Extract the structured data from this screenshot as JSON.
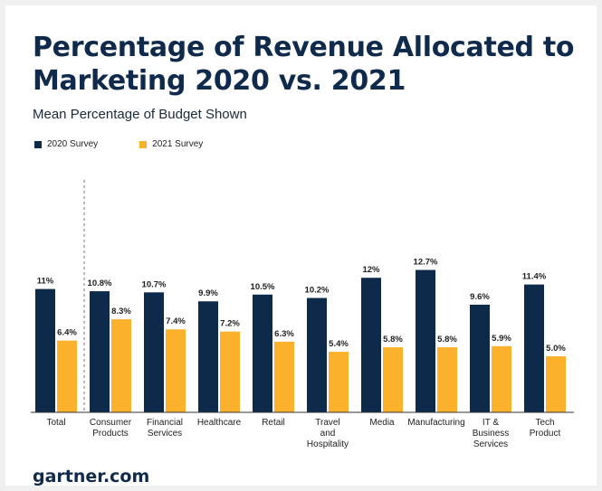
{
  "title": "Percentage of Revenue Allocated to Marketing 2020 vs. 2021",
  "subtitle": "Mean Percentage of Budget Shown",
  "footer": "gartner.com",
  "colors": {
    "series_2020": "#0e2a4b",
    "series_2021": "#fbb12b"
  },
  "chart_data": {
    "type": "bar",
    "title": "Percentage of Revenue Allocated to Marketing 2020 vs. 2021",
    "subtitle": "Mean Percentage of Budget Shown",
    "legend_position": "top-left",
    "grid": false,
    "ylim": [
      0,
      14
    ],
    "categories": [
      [
        "Total"
      ],
      [
        "Consumer",
        "Products"
      ],
      [
        "Financial",
        "Services"
      ],
      [
        "Healthcare"
      ],
      [
        "Retail"
      ],
      [
        "Travel",
        "and",
        "Hospitality"
      ],
      [
        "Media"
      ],
      [
        "Manufacturing"
      ],
      [
        "IT &",
        "Business",
        "Services"
      ],
      [
        "Tech",
        "Product"
      ]
    ],
    "series": [
      {
        "name": "2020 Survey",
        "values": [
          11,
          10.8,
          10.7,
          9.9,
          10.5,
          10.2,
          12,
          12.7,
          9.6,
          11.4
        ],
        "labels": [
          "11%",
          "10.8%",
          "10.7%",
          "9.9%",
          "10.5%",
          "10.2%",
          "12%",
          "12.7%",
          "9.6%",
          "11.4%"
        ]
      },
      {
        "name": "2021 Survey",
        "values": [
          6.4,
          8.3,
          7.4,
          7.2,
          6.3,
          5.4,
          5.8,
          5.8,
          5.9,
          5.0
        ],
        "labels": [
          "6.4%",
          "8.3%",
          "7.4%",
          "7.2%",
          "6.3%",
          "5.4%",
          "5.8%",
          "5.8%",
          "5.9%",
          "5.0%"
        ]
      }
    ]
  }
}
